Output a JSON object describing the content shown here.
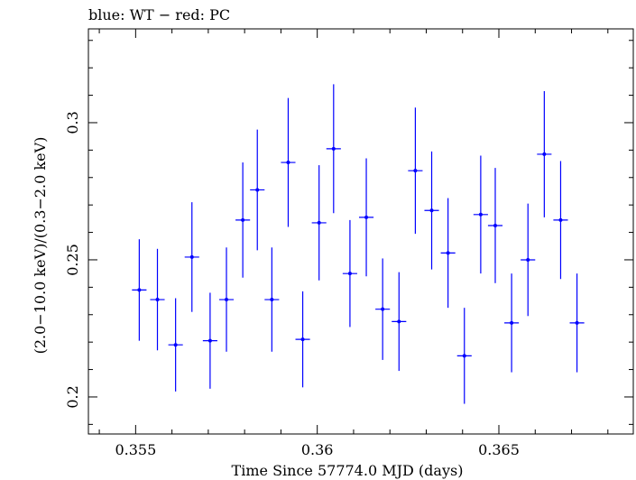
{
  "chart_data": {
    "type": "scatter",
    "title": "blue: WT − red: PC",
    "xlabel": "Time Since 57774.0 MJD (days)",
    "ylabel": "(2.0−10.0 keV)/(0.3−2.0 keV)",
    "xlim": [
      0.3537,
      0.3687
    ],
    "ylim": [
      0.1865,
      0.3342
    ],
    "x_ticks": [
      0.355,
      0.36,
      0.365
    ],
    "x_tick_labels": [
      "0.355",
      "0.36",
      "0.365"
    ],
    "y_ticks": [
      0.2,
      0.25,
      0.3
    ],
    "y_tick_labels": [
      "0.2",
      "0.25",
      "0.3"
    ],
    "grid": false,
    "series": [
      {
        "color": "#0000ff",
        "points": [
          {
            "x": 0.3551,
            "xerr": 0.0002,
            "y": 0.239,
            "yerr": 0.0185
          },
          {
            "x": 0.3556,
            "xerr": 0.0002,
            "y": 0.2355,
            "yerr": 0.0185
          },
          {
            "x": 0.3561,
            "xerr": 0.0002,
            "y": 0.219,
            "yerr": 0.017
          },
          {
            "x": 0.35655,
            "xerr": 0.0002,
            "y": 0.251,
            "yerr": 0.02
          },
          {
            "x": 0.35705,
            "xerr": 0.0002,
            "y": 0.2205,
            "yerr": 0.0175
          },
          {
            "x": 0.3575,
            "xerr": 0.0002,
            "y": 0.2355,
            "yerr": 0.019
          },
          {
            "x": 0.35795,
            "xerr": 0.0002,
            "y": 0.2645,
            "yerr": 0.021
          },
          {
            "x": 0.35835,
            "xerr": 0.0002,
            "y": 0.2755,
            "yerr": 0.022
          },
          {
            "x": 0.35875,
            "xerr": 0.0002,
            "y": 0.2355,
            "yerr": 0.019
          },
          {
            "x": 0.3592,
            "xerr": 0.0002,
            "y": 0.2855,
            "yerr": 0.0235
          },
          {
            "x": 0.3596,
            "xerr": 0.0002,
            "y": 0.221,
            "yerr": 0.0175
          },
          {
            "x": 0.36005,
            "xerr": 0.0002,
            "y": 0.2635,
            "yerr": 0.021
          },
          {
            "x": 0.36045,
            "xerr": 0.0002,
            "y": 0.2905,
            "yerr": 0.0235
          },
          {
            "x": 0.3609,
            "xerr": 0.0002,
            "y": 0.245,
            "yerr": 0.0195
          },
          {
            "x": 0.36135,
            "xerr": 0.0002,
            "y": 0.2655,
            "yerr": 0.0215
          },
          {
            "x": 0.3618,
            "xerr": 0.0002,
            "y": 0.232,
            "yerr": 0.0185
          },
          {
            "x": 0.36225,
            "xerr": 0.0002,
            "y": 0.2275,
            "yerr": 0.018
          },
          {
            "x": 0.3627,
            "xerr": 0.0002,
            "y": 0.2825,
            "yerr": 0.023
          },
          {
            "x": 0.36315,
            "xerr": 0.0002,
            "y": 0.268,
            "yerr": 0.0215
          },
          {
            "x": 0.3636,
            "xerr": 0.0002,
            "y": 0.2525,
            "yerr": 0.02
          },
          {
            "x": 0.36405,
            "xerr": 0.0002,
            "y": 0.215,
            "yerr": 0.0175
          },
          {
            "x": 0.3645,
            "xerr": 0.0002,
            "y": 0.2665,
            "yerr": 0.0215
          },
          {
            "x": 0.3649,
            "xerr": 0.0002,
            "y": 0.2625,
            "yerr": 0.021
          },
          {
            "x": 0.36535,
            "xerr": 0.0002,
            "y": 0.227,
            "yerr": 0.018
          },
          {
            "x": 0.3658,
            "xerr": 0.0002,
            "y": 0.25,
            "yerr": 0.0205
          },
          {
            "x": 0.36625,
            "xerr": 0.0002,
            "y": 0.2885,
            "yerr": 0.023
          },
          {
            "x": 0.3667,
            "xerr": 0.0002,
            "y": 0.2645,
            "yerr": 0.0215
          },
          {
            "x": 0.36715,
            "xerr": 0.0002,
            "y": 0.227,
            "yerr": 0.018
          }
        ]
      }
    ]
  }
}
